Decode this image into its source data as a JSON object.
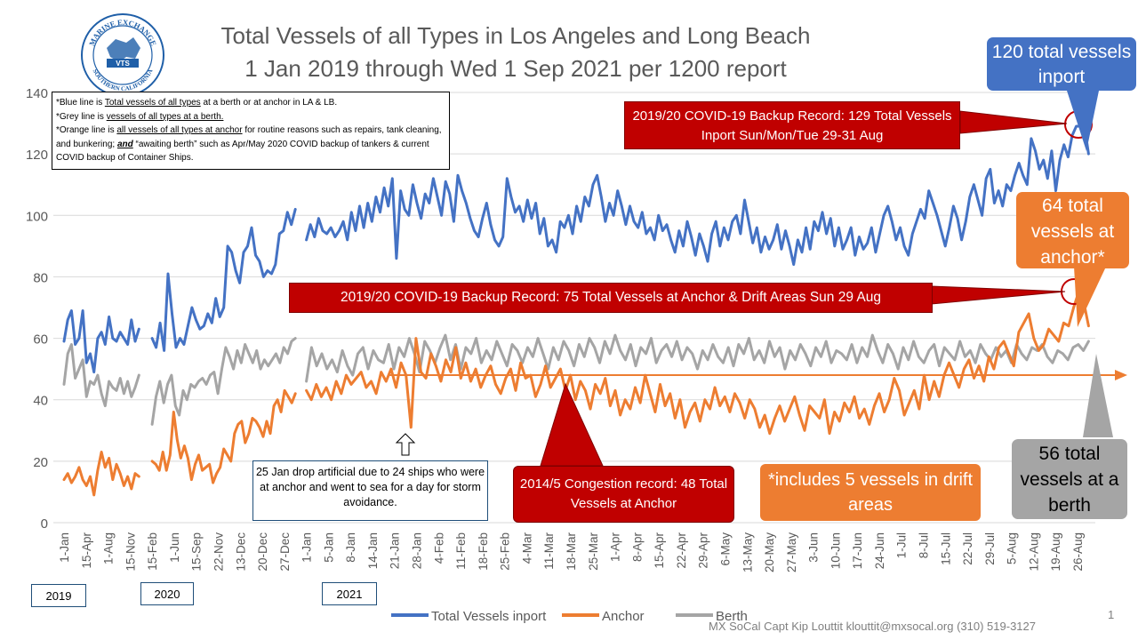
{
  "title_line1": "Total Vessels of all Types in Los Angeles and Long Beach",
  "title_line2": "1 Jan 2019 through Wed 1 Sep 2021 per 1200 report",
  "logo": {
    "top_text": "MARINE EXCHANGE",
    "bottom_text": "SOUTHERN CALIFORNIA",
    "center": "VTS"
  },
  "note": {
    "l1_pre": "*Blue line is ",
    "l1_u": "Total vessels of all types",
    "l1_post": " at a berth or at anchor in LA & LB.",
    "l2_pre": "*Grey line is ",
    "l2_u": "vessels of all types at a berth.",
    "l3_pre": "*Orange line is ",
    "l3_u": "all vessels of all types at anchor",
    "l3_post": " for routine reasons such as repairs, tank cleaning, and bunkering;",
    "l3_bold": "and",
    "l3_end": " “awaiting berth” such as Apr/May 2020 COVID backup of tankers & current COVID backup of Container Ships."
  },
  "callouts": {
    "inport_total": "120 total vessels inport",
    "anchor_total": "64 total vessels at anchor*",
    "berth_total": "56 total vessels at a berth",
    "record_inport": "2019/20 COVID-19 Backup Record: 129 Total Vessels Inport Sun/Mon/Tue 29-31 Aug",
    "record_anchor": "2019/20 COVID-19 Backup Record: 75 Total Vessels at Anchor & Drift Areas Sun 29 Aug",
    "congestion": "2014/5 Congestion record: 48 Total Vessels at Anchor",
    "drift": "*includes 5 vessels in drift areas",
    "storm": "25 Jan drop artificial due to 24 ships who were at anchor and went to sea for a day for storm avoidance."
  },
  "years": [
    "2019",
    "2020",
    "2021"
  ],
  "footer": "MX SoCal Capt Kip Louttit  klouttit@mxsocal.org  (310) 519-3127",
  "page_number": "1",
  "colors": {
    "inport": "#4472c4",
    "anchor": "#ed7d31",
    "berth": "#a5a5a5",
    "record": "#c00000"
  },
  "chart_data": {
    "type": "line",
    "ylim": [
      0,
      140
    ],
    "yticks": [
      0,
      20,
      40,
      60,
      80,
      100,
      120,
      140
    ],
    "x_tick_labels": [
      "1-Jan",
      "15-Apr",
      "1-Aug",
      "15-Nov",
      "15-Feb",
      "1-Jun",
      "15-Sep",
      "22-Nov",
      "13-Dec",
      "20-Dec",
      "27-Dec",
      "1-Jan",
      "5-Jan",
      "8-Jan",
      "14-Jan",
      "21-Jan",
      "28-Jan",
      "4-Feb",
      "11-Feb",
      "18-Feb",
      "25-Feb",
      "4-Mar",
      "11-Mar",
      "18-Mar",
      "25-Mar",
      "1-Apr",
      "8-Apr",
      "15-Apr",
      "22-Apr",
      "29-Apr",
      "6-May",
      "13-May",
      "20-May",
      "27-May",
      "3-Jun",
      "10-Jun",
      "17-Jun",
      "24-Jun",
      "1-Jul",
      "8-Jul",
      "15-Jul",
      "22-Jul",
      "29-Jul",
      "5-Aug",
      "12-Aug",
      "19-Aug",
      "26-Aug"
    ],
    "legend": [
      "Total Vessels inport",
      "Anchor",
      "Berth"
    ],
    "legend_position": "bottom",
    "reference_line": {
      "value": 48,
      "label": "2014/5 Congestion record"
    },
    "series": [
      {
        "name": "Total Vessels inport",
        "segments": [
          {
            "start_tick": 0,
            "end_tick": 3.4,
            "values": [
              59,
              66,
              69,
              58,
              60,
              69,
              52,
              55,
              49,
              60,
              62,
              58,
              67,
              60,
              59,
              62,
              60,
              58,
              66,
              59,
              63
            ]
          },
          {
            "start_tick": 4,
            "end_tick": 10.5,
            "values": [
              60,
              57,
              65,
              56,
              81,
              68,
              57,
              60,
              58,
              64,
              70,
              66,
              63,
              64,
              68,
              65,
              73,
              67,
              70,
              90,
              88,
              82,
              78,
              88,
              90,
              96,
              87,
              85,
              80,
              82,
              81,
              84,
              94,
              95,
              101,
              97,
              102
            ]
          },
          {
            "start_tick": 11,
            "end_tick": 46.5,
            "values": [
              92,
              97,
              93,
              99,
              95,
              94,
              96,
              93,
              95,
              98,
              92,
              101,
              95,
              103,
              96,
              104,
              98,
              106,
              101,
              109,
              103,
              112,
              86,
              108,
              102,
              100,
              110,
              104,
              99,
              107,
              104,
              112,
              106,
              100,
              111,
              107,
              98,
              113,
              108,
              104,
              99,
              95,
              93,
              99,
              104,
              97,
              92,
              90,
              93,
              112,
              106,
              101,
              103,
              98,
              105,
              99,
              104,
              94,
              99,
              90,
              92,
              88,
              98,
              96,
              100,
              94,
              103,
              98,
              106,
              103,
              110,
              113,
              106,
              98,
              104,
              100,
              108,
              103,
              97,
              103,
              98,
              96,
              101,
              94,
              96,
              92,
              100,
              95,
              97,
              92,
              88,
              95,
              90,
              98,
              93,
              87,
              94,
              90,
              85,
              94,
              98,
              90,
              96,
              92,
              98,
              100,
              94,
              105,
              98,
              91,
              96,
              88,
              93,
              89,
              92,
              97,
              89,
              95,
              90,
              84,
              92,
              88,
              96,
              89,
              98,
              95,
              101,
              94,
              99,
              90,
              96,
              89,
              92,
              96,
              87,
              93,
              89,
              91,
              96,
              88,
              94,
              100,
              103,
              98,
              92,
              96,
              90,
              87,
              94,
              98,
              102,
              99,
              108,
              104,
              100,
              95,
              90,
              96,
              103,
              99,
              92,
              98,
              106,
              110,
              105,
              100,
              112,
              115,
              104,
              108,
              103,
              110,
              108,
              113,
              117,
              113,
              110,
              125,
              121,
              115,
              118,
              112,
              121,
              108,
              118,
              123,
              119,
              126,
              129,
              129,
              129,
              120
            ]
          }
        ]
      },
      {
        "name": "Anchor",
        "segments": [
          {
            "start_tick": 0,
            "end_tick": 3.4,
            "values": [
              14,
              16,
              13,
              15,
              18,
              14,
              12,
              15,
              9,
              17,
              23,
              18,
              21,
              14,
              19,
              16,
              12,
              15,
              11,
              16,
              15
            ]
          },
          {
            "start_tick": 4,
            "end_tick": 10.5,
            "values": [
              20,
              19,
              17,
              23,
              17,
              22,
              36,
              27,
              21,
              25,
              21,
              14,
              19,
              22,
              17,
              18,
              19,
              13,
              16,
              18,
              24,
              22,
              20,
              29,
              32,
              33,
              26,
              29,
              34,
              33,
              31,
              28,
              33,
              29,
              38,
              40,
              36,
              43,
              41,
              39,
              42
            ]
          },
          {
            "start_tick": 11,
            "end_tick": 46.5,
            "values": [
              43,
              40,
              45,
              41,
              44,
              40,
              46,
              42,
              48,
              45,
              47,
              49,
              44,
              46,
              42,
              49,
              46,
              50,
              44,
              52,
              48,
              31,
              60,
              49,
              47,
              55,
              51,
              46,
              53,
              49,
              57,
              47,
              52,
              46,
              50,
              44,
              48,
              51,
              45,
              42,
              47,
              50,
              43,
              52,
              47,
              48,
              41,
              45,
              51,
              44,
              47,
              50,
              43,
              48,
              40,
              46,
              43,
              37,
              45,
              42,
              47,
              38,
              43,
              35,
              40,
              37,
              44,
              39,
              48,
              42,
              36,
              45,
              38,
              42,
              34,
              40,
              31,
              36,
              39,
              33,
              40,
              37,
              44,
              38,
              41,
              36,
              42,
              39,
              34,
              40,
              37,
              31,
              35,
              29,
              34,
              38,
              33,
              37,
              41,
              35,
              30,
              38,
              36,
              34,
              40,
              29,
              36,
              33,
              39,
              36,
              41,
              34,
              37,
              32,
              38,
              42,
              36,
              40,
              47,
              43,
              35,
              39,
              43,
              37,
              48,
              40,
              46,
              41,
              48,
              52,
              48,
              44,
              50,
              53,
              47,
              51,
              46,
              54,
              50,
              57,
              59,
              55,
              51,
              62,
              65,
              68,
              60,
              56,
              58,
              63,
              61,
              59,
              65,
              64,
              70,
              75,
              72,
              64
            ]
          }
        ]
      },
      {
        "name": "Berth",
        "segments": [
          {
            "start_tick": 0,
            "end_tick": 3.4,
            "values": [
              45,
              55,
              58,
              47,
              50,
              53,
              41,
              46,
              45,
              48,
              42,
              38,
              46,
              44,
              43,
              47,
              42,
              46,
              41,
              44,
              48
            ]
          },
          {
            "start_tick": 4,
            "end_tick": 10.5,
            "values": [
              32,
              41,
              46,
              39,
              45,
              48,
              38,
              35,
              43,
              40,
              45,
              44,
              46,
              47,
              45,
              48,
              49,
              42,
              50,
              57,
              54,
              50,
              56,
              52,
              58,
              55,
              52,
              56,
              50,
              53,
              51,
              53,
              55,
              52,
              57,
              55,
              59,
              60
            ]
          },
          {
            "start_tick": 11,
            "end_tick": 46.5,
            "values": [
              46,
              57,
              51,
              55,
              50,
              53,
              49,
              56,
              51,
              48,
              55,
              57,
              50,
              56,
              53,
              52,
              58,
              50,
              57,
              54,
              60,
              55,
              49,
              59,
              56,
              52,
              57,
              61,
              53,
              58,
              50,
              57,
              55,
              60,
              52,
              56,
              53,
              59,
              55,
              51,
              58,
              56,
              52,
              57,
              54,
              60,
              55,
              50,
              57,
              53,
              59,
              56,
              51,
              58,
              54,
              60,
              57,
              52,
              59,
              55,
              61,
              56,
              53,
              58,
              51,
              57,
              55,
              60,
              52,
              56,
              58,
              54,
              59,
              53,
              57,
              55,
              50,
              56,
              53,
              58,
              54,
              52,
              57,
              51,
              58,
              55,
              60,
              53,
              56,
              52,
              59,
              54,
              57,
              50,
              56,
              53,
              58,
              55,
              51,
              57,
              54,
              59,
              52,
              56,
              55,
              53,
              58,
              52,
              57,
              54,
              61,
              56,
              52,
              58,
              55,
              50,
              57,
              53,
              59,
              54,
              52,
              56,
              58,
              51,
              57,
              55,
              53,
              59,
              54,
              56,
              52,
              58,
              55,
              53,
              57,
              54,
              56,
              52,
              58,
              55,
              53,
              57,
              56,
              58,
              54,
              52,
              56,
              55,
              53,
              57,
              58,
              56,
              59
            ]
          }
        ]
      }
    ]
  }
}
